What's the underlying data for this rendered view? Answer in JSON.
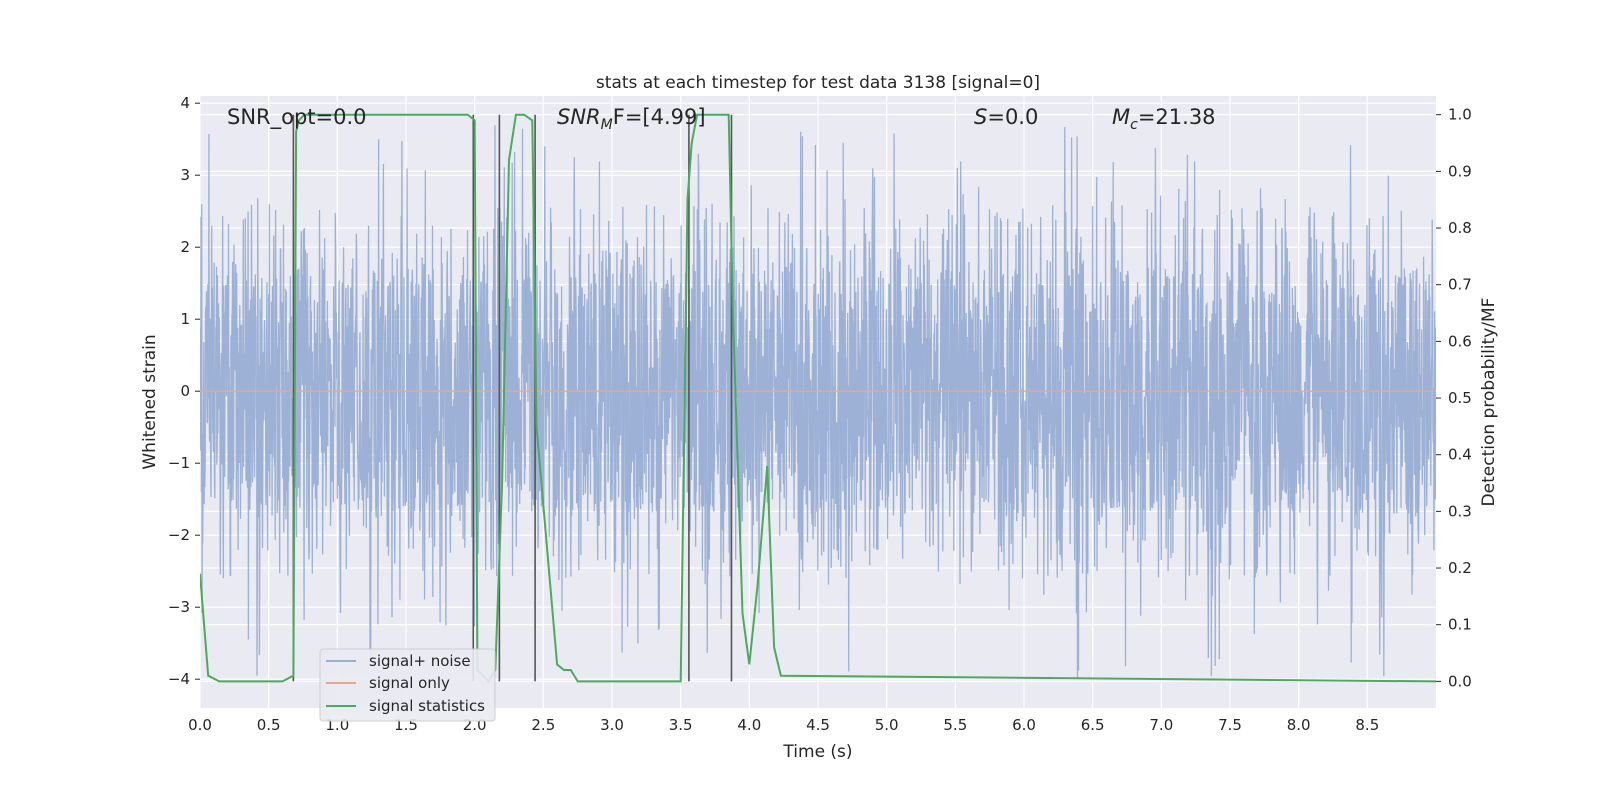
{
  "chart_data": {
    "type": "line",
    "title": "stats at each timestep for test data 3138 [signal=0]",
    "xlabel": "Time (s)",
    "ylabel_left": "Whitened strain",
    "ylabel_right": "Detection probability/MF",
    "xlim": [
      0.0,
      9.0
    ],
    "ylim_left": [
      -4.4,
      4.1
    ],
    "ylim_right": [
      -0.047,
      1.033
    ],
    "x_ticks": [
      "0.0",
      "0.5",
      "1.0",
      "1.5",
      "2.0",
      "2.5",
      "3.0",
      "3.5",
      "4.0",
      "4.5",
      "5.0",
      "5.5",
      "6.0",
      "6.5",
      "7.0",
      "7.5",
      "8.0",
      "8.5"
    ],
    "y_ticks_left": [
      "4",
      "3",
      "2",
      "1",
      "0",
      "−1",
      "−2",
      "−3",
      "−4"
    ],
    "y_ticks_right": [
      "1.0",
      "0.9",
      "0.8",
      "0.7",
      "0.6",
      "0.5",
      "0.4",
      "0.3",
      "0.2",
      "0.1",
      "0.0"
    ],
    "grid": true,
    "legend_placement": "lower-left",
    "annotations": {
      "snr_opt": "SNR_opt=0.0",
      "snr_mf_label": "SNR",
      "snr_mf_sub": "M",
      "snr_mf_rest": "F=[4.99]",
      "s_label": "S",
      "s_rest": "=0.0",
      "mc_label": "M",
      "mc_sub": "c",
      "mc_rest": "=21.38"
    },
    "series": [
      {
        "name": "signal+ noise",
        "color": "#98aed3",
        "description_type": "noise band",
        "typical_range": [
          -1.7,
          1.7
        ],
        "max_excursion": [
          -4.0,
          3.7
        ]
      },
      {
        "name": "signal only",
        "color": "#e8a888",
        "x": [
          0.0,
          9.0
        ],
        "y": [
          0.0,
          0.0
        ]
      },
      {
        "name": "signal statistics",
        "color": "#4caa5e",
        "axis": "right",
        "x": [
          0.0,
          0.06,
          0.14,
          0.6,
          0.68,
          0.7,
          0.72,
          0.76,
          1.95,
          2.0,
          2.02,
          2.1,
          2.15,
          2.2,
          2.25,
          2.3,
          2.36,
          2.42,
          2.45,
          2.6,
          2.65,
          2.7,
          2.75,
          2.8,
          3.5,
          3.55,
          3.58,
          3.62,
          3.67,
          3.85,
          3.88,
          3.95,
          4.0,
          4.06,
          4.13,
          4.18,
          4.23,
          9.0
        ],
        "y": [
          0.19,
          0.01,
          0.0,
          0.0,
          0.01,
          0.97,
          0.99,
          1.0,
          1.0,
          0.99,
          0.02,
          0.0,
          0.02,
          0.35,
          0.92,
          1.0,
          1.0,
          0.99,
          0.45,
          0.03,
          0.02,
          0.02,
          0.0,
          0.0,
          0.0,
          0.85,
          0.95,
          1.0,
          1.0,
          1.0,
          0.65,
          0.12,
          0.03,
          0.17,
          0.38,
          0.06,
          0.01,
          0.0
        ]
      }
    ],
    "vertical_markers_x": [
      0.68,
      1.99,
      2.18,
      2.44,
      3.56,
      3.87
    ]
  },
  "legend": {
    "items": [
      {
        "label": "signal+ noise",
        "color": "#98aed3"
      },
      {
        "label": "signal only",
        "color": "#e8a888"
      },
      {
        "label": "signal statistics",
        "color": "#4caa5e"
      }
    ]
  },
  "colors": {
    "axes_background": "#eaeaf2",
    "grid": "#ffffff",
    "marker_line": "#555555"
  }
}
